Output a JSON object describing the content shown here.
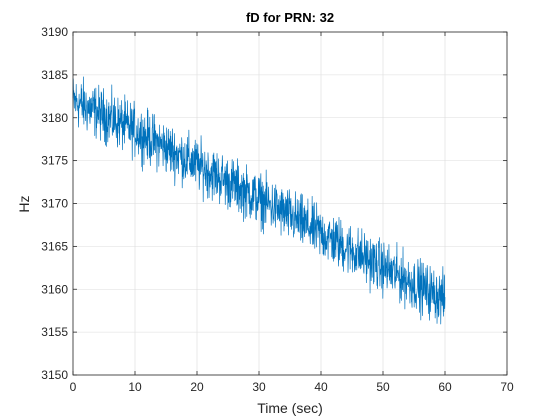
{
  "chart_data": {
    "type": "line",
    "title": "fD for PRN: 32",
    "xlabel": "Time (sec)",
    "ylabel": "Hz",
    "xlim": [
      0,
      70
    ],
    "ylim": [
      3150,
      3190
    ],
    "xticks": [
      0,
      10,
      20,
      30,
      40,
      50,
      60,
      70
    ],
    "yticks": [
      3150,
      3155,
      3160,
      3165,
      3170,
      3175,
      3180,
      3185,
      3190
    ],
    "xtick_labels": [
      "0",
      "10",
      "20",
      "30",
      "40",
      "50",
      "60",
      "70"
    ],
    "ytick_labels": [
      "3150",
      "3155",
      "3160",
      "3165",
      "3170",
      "3175",
      "3180",
      "3185",
      "3190"
    ],
    "grid": true,
    "legend": "none",
    "series": [
      {
        "color": "#0072BD",
        "trend_x": [
          0,
          10,
          20,
          30,
          40,
          50,
          60
        ],
        "trend_y": [
          3182.0,
          3178.5,
          3174.5,
          3170.5,
          3166.5,
          3162.5,
          3158.8
        ],
        "noise_amplitude": 4.5,
        "x_end": 60
      }
    ]
  }
}
